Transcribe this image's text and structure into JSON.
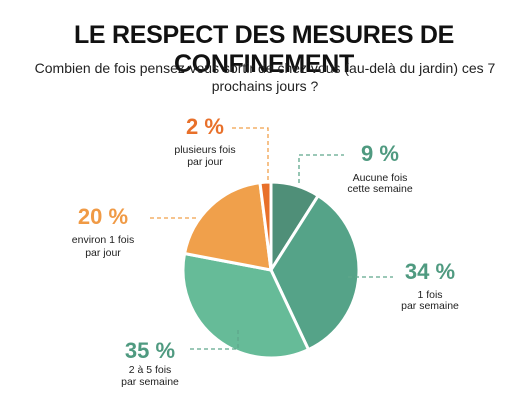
{
  "header": {
    "title": "LE RESPECT DES MESURES DE CONFINEMENT",
    "question": "Combien de fois pensez-vous sortir de chez vous (au-delà du jardin) ces 7 prochains jours ?"
  },
  "chart_data": {
    "type": "pie",
    "title": "LE RESPECT DES MESURES DE CONFINEMENT",
    "subtitle": "Combien de fois pensez-vous sortir de chez vous (au-delà du jardin) ces 7 prochains jours ?",
    "slices": [
      {
        "value": 9,
        "pct_label": "9 %",
        "label_lines": [
          "Aucune fois",
          "cette semaine"
        ],
        "color": "#4f8f78"
      },
      {
        "value": 34,
        "pct_label": "34 %",
        "label_lines": [
          "1 fois",
          "par semaine"
        ],
        "color": "#55a388"
      },
      {
        "value": 35,
        "pct_label": "35 %",
        "label_lines": [
          "2 à 5 fois",
          "par semaine"
        ],
        "color": "#66bb98"
      },
      {
        "value": 20,
        "pct_label": "20 %",
        "label_lines": [
          "environ 1 fois",
          "par jour"
        ],
        "color": "#f0a04b"
      },
      {
        "value": 2,
        "pct_label": "2 %",
        "label_lines": [
          "plusieurs fois",
          "par jour"
        ],
        "color": "#e8702a"
      }
    ],
    "start": "top",
    "direction": "clockwise"
  },
  "colors": {
    "green_text": "#4f9a80",
    "orange_text": "#f09a45",
    "red_orange_text": "#e8702a",
    "leader_green": "#5fa88c",
    "leader_orange": "#f0a04b"
  }
}
